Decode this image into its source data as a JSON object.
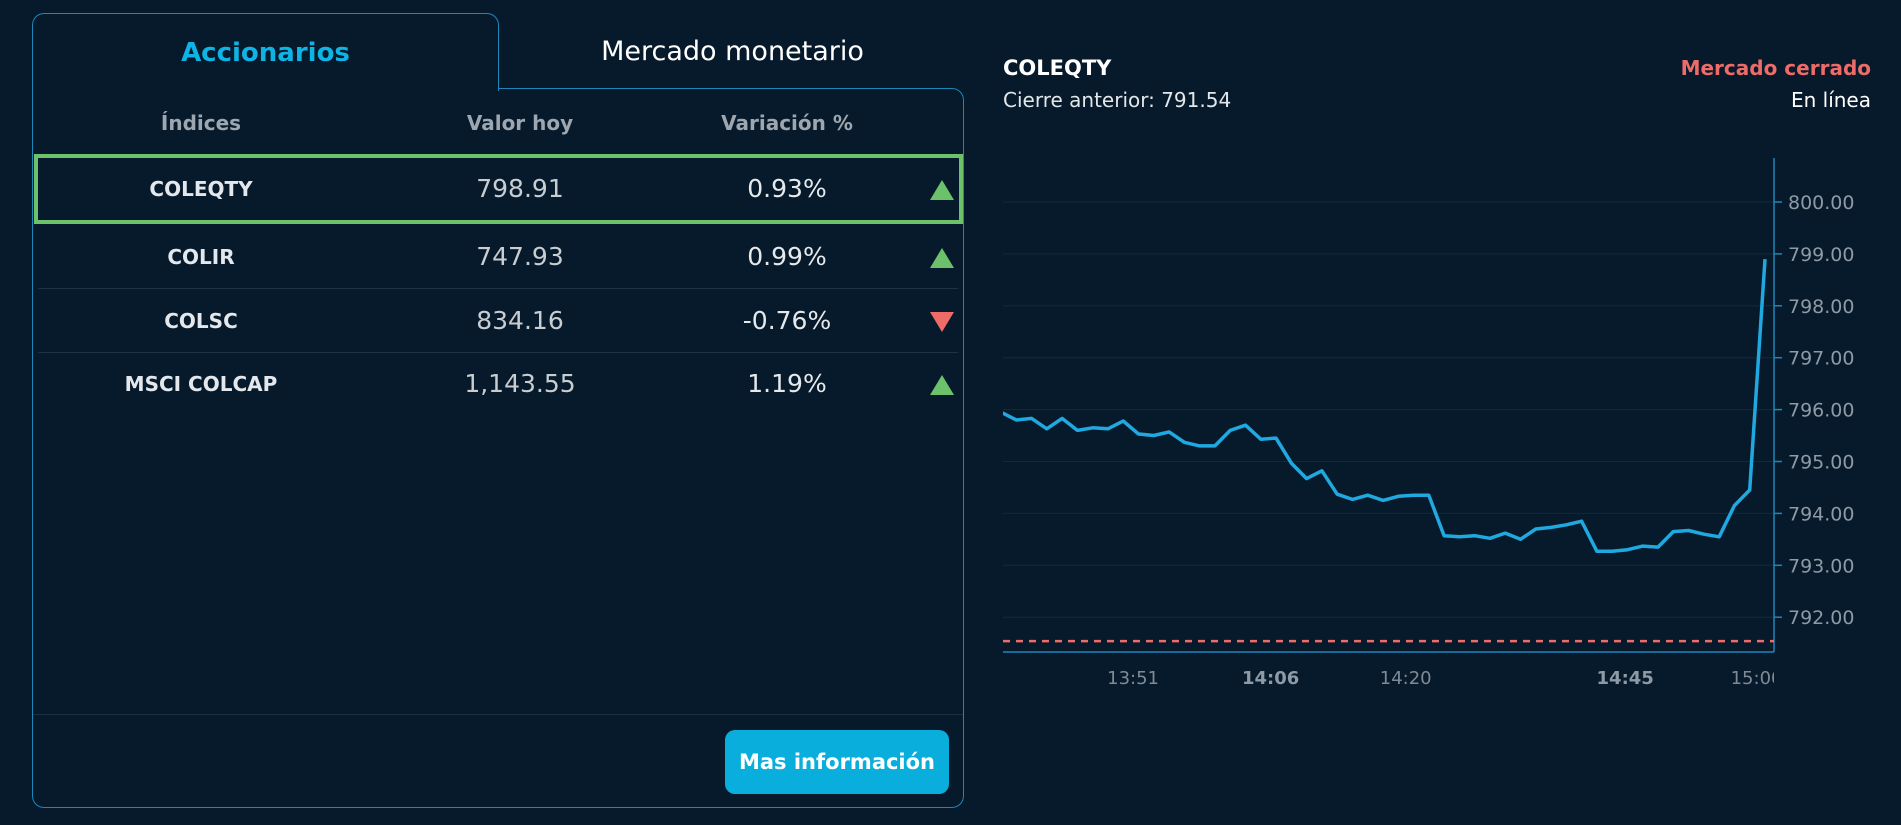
{
  "tabs": {
    "active": "Accionarios",
    "inactive": "Mercado monetario"
  },
  "table": {
    "headers": [
      "Índices",
      "Valor hoy",
      "Variación %"
    ],
    "rows": [
      {
        "name": "COLEQTY",
        "value": "798.91",
        "change": "0.93%",
        "direction": "up"
      },
      {
        "name": "COLIR",
        "value": "747.93",
        "change": "0.99%",
        "direction": "up"
      },
      {
        "name": "COLSC",
        "value": "834.16",
        "change": "-0.76%",
        "direction": "down"
      },
      {
        "name": "MSCI COLCAP",
        "value": "1,143.55",
        "change": "1.19%",
        "direction": "up"
      }
    ],
    "selected_index": 0
  },
  "more_button": "Mas información",
  "chart_header": {
    "symbol": "COLEQTY",
    "previous_close": "Cierre anterior: 791.54",
    "market_status": "Mercado cerrado",
    "connection": "En línea"
  },
  "colors": {
    "background": "#061a2b",
    "accent": "#0fb4e6",
    "up": "#6cc26a",
    "down": "#ee6b68",
    "line": "#1fa9e0"
  },
  "chart_data": {
    "type": "line",
    "title": "COLEQTY",
    "xlabel": "",
    "ylabel": "",
    "ylim": [
      791.3,
      800.8
    ],
    "yticks": [
      "800.00",
      "799.00",
      "798.00",
      "797.00",
      "796.00",
      "795.00",
      "794.00",
      "793.00",
      "792.00"
    ],
    "xticks": [
      {
        "label": "13:51",
        "bold": false,
        "t": 0.1707
      },
      {
        "label": "14:06",
        "bold": true,
        "t": 0.3512
      },
      {
        "label": "14:20",
        "bold": false,
        "t": 0.5285
      },
      {
        "label": "14:45",
        "bold": true,
        "t": 0.8165
      },
      {
        "label": "15:00",
        "bold": false,
        "t": 0.9889
      }
    ],
    "reference_line": {
      "label": "Cierre anterior",
      "value": 791.54
    },
    "series": [
      {
        "values": [
          795.95,
          795.8,
          795.83,
          795.63,
          795.83,
          795.6,
          795.65,
          795.63,
          795.78,
          795.53,
          795.5,
          795.57,
          795.37,
          795.3,
          795.3,
          795.6,
          795.7,
          795.43,
          795.45,
          794.97,
          794.67,
          794.82,
          794.37,
          794.27,
          794.35,
          794.25,
          794.33,
          794.35,
          794.35,
          793.57,
          793.55,
          793.57,
          793.52,
          793.62,
          793.5,
          793.7,
          793.73,
          793.78,
          793.85,
          793.27,
          793.27,
          793.3,
          793.37,
          793.35,
          793.65,
          793.67,
          793.6,
          793.55,
          794.15,
          794.45,
          798.9
        ]
      }
    ]
  }
}
